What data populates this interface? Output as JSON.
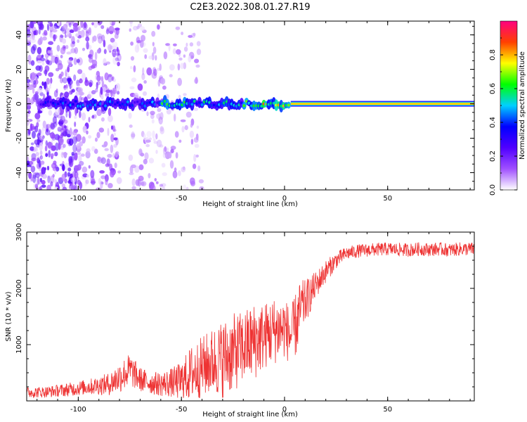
{
  "title": "C2E3.2022.308.01.27.R19",
  "chart_data": [
    {
      "type": "heatmap",
      "xlabel": "Height of straight line (km)",
      "ylabel": "Frequency (Hz)",
      "xlim": [
        -125,
        92
      ],
      "ylim": [
        -50,
        48
      ],
      "xticks": [
        -100,
        -50,
        0,
        50
      ],
      "xtick_labels": [
        "-100",
        "-50",
        "0",
        "50"
      ],
      "yticks": [
        -40,
        -20,
        0,
        20,
        40
      ],
      "ytick_labels": [
        "-40",
        "-20",
        "0",
        "20",
        "40"
      ],
      "colorbar": {
        "label": "Normalized spectral amplitude",
        "range": [
          0,
          1
        ],
        "ticks": [
          0.0,
          0.2,
          0.4,
          0.6,
          0.8
        ],
        "tick_labels": [
          "0.0",
          "0.2",
          "0.4",
          "0.6",
          "0.8"
        ],
        "colormap": [
          "#ffffff",
          "#a050ff",
          "#5000ff",
          "#0000ff",
          "#00d0ff",
          "#00ff00",
          "#ffff00",
          "#ff4000",
          "#ff0080"
        ]
      },
      "features": {
        "ridge_frequency_hz": 0,
        "ridge_strong_from_km": 3,
        "ridge_strong_to_km": 92,
        "noise_zone_km": [
          -125,
          -58
        ]
      }
    },
    {
      "type": "line",
      "xlabel": "Height of straight line (km)",
      "ylabel": "SNR (10 * v/v)",
      "xlim": [
        -125,
        92
      ],
      "ylim": [
        0,
        3000
      ],
      "xticks": [
        -100,
        -50,
        0,
        50
      ],
      "xtick_labels": [
        "-100",
        "-50",
        "0",
        "50"
      ],
      "yticks": [
        1000,
        2000,
        3000
      ],
      "ytick_labels": [
        "1000",
        "2000",
        "3000"
      ],
      "line_color": "#ee3333",
      "series": [
        {
          "name": "SNR",
          "x": [
            -125,
            -115,
            -105,
            -95,
            -85,
            -80,
            -75,
            -70,
            -65,
            -60,
            -55,
            -50,
            -45,
            -40,
            -35,
            -30,
            -25,
            -20,
            -15,
            -10,
            -5,
            0,
            3,
            6,
            8,
            10,
            15,
            20,
            25,
            30,
            35,
            40,
            45,
            50,
            55,
            60,
            65,
            70,
            75,
            80,
            85,
            92
          ],
          "y": [
            150,
            160,
            200,
            250,
            300,
            420,
            550,
            380,
            320,
            300,
            320,
            350,
            500,
            600,
            700,
            750,
            850,
            950,
            1050,
            1150,
            1250,
            1300,
            1150,
            1400,
            1650,
            1750,
            2050,
            2300,
            2500,
            2620,
            2660,
            2680,
            2690,
            2700,
            2690,
            2680,
            2700,
            2690,
            2700,
            2680,
            2700,
            2700
          ],
          "noise_amplitude": [
            100,
            100,
            120,
            140,
            200,
            280,
            300,
            220,
            200,
            220,
            260,
            350,
            500,
            550,
            600,
            700,
            700,
            650,
            700,
            600,
            600,
            550,
            500,
            600,
            500,
            400,
            250,
            200,
            150,
            120,
            120,
            120,
            120,
            120,
            120,
            120,
            120,
            120,
            120,
            120,
            120,
            120
          ]
        }
      ]
    }
  ]
}
